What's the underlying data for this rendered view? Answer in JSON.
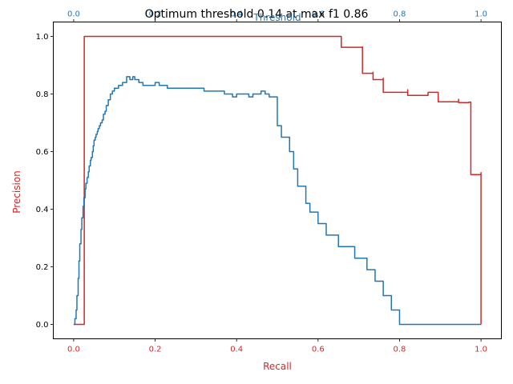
{
  "chart_data": {
    "type": "line",
    "title": "Optimum threshold 0.14 at max f1 0.86",
    "xlabel": "Recall",
    "ylabel": "Precision",
    "top_xlabel": "Threshold",
    "xlim": [
      -0.05,
      1.05
    ],
    "ylim": [
      -0.05,
      1.05
    ],
    "x_ticks": [
      "0.0",
      "0.2",
      "0.4",
      "0.6",
      "0.8",
      "1.0"
    ],
    "y_ticks": [
      "0.0",
      "0.2",
      "0.4",
      "0.6",
      "0.8",
      "1.0"
    ],
    "top_x_ticks": [
      "0.0",
      "0.2",
      "0.4",
      "0.6",
      "0.8",
      "1.0"
    ],
    "colors": {
      "precision_recall": "#d62728",
      "f1_threshold": "#1f77b4",
      "axis": "#000000"
    },
    "series": [
      {
        "axis": "bottom",
        "color": "#d62728",
        "drawstyle": "steps-post",
        "x": [
          0.0,
          0.026,
          0.657,
          0.657,
          0.709,
          0.709,
          0.735,
          0.735,
          0.76,
          0.76,
          0.82,
          0.82,
          0.87,
          0.895,
          0.895,
          0.945,
          0.945,
          0.97,
          0.975,
          0.975,
          1.0,
          1.0
        ],
        "y": [
          0.0,
          1.0,
          1.0,
          0.962,
          0.964,
          0.872,
          0.876,
          0.85,
          0.855,
          0.806,
          0.815,
          0.795,
          0.806,
          0.79,
          0.773,
          0.782,
          0.77,
          0.772,
          0.768,
          0.52,
          0.527,
          0.0
        ]
      },
      {
        "axis": "top",
        "color": "#1f77b4",
        "drawstyle": "steps-post",
        "x": [
          0.0,
          0.003,
          0.006,
          0.008,
          0.011,
          0.013,
          0.015,
          0.018,
          0.02,
          0.023,
          0.025,
          0.028,
          0.03,
          0.033,
          0.036,
          0.038,
          0.041,
          0.043,
          0.046,
          0.048,
          0.05,
          0.053,
          0.055,
          0.058,
          0.06,
          0.063,
          0.066,
          0.07,
          0.073,
          0.077,
          0.08,
          0.085,
          0.09,
          0.095,
          0.1,
          0.105,
          0.11,
          0.12,
          0.13,
          0.138,
          0.145,
          0.15,
          0.16,
          0.17,
          0.2,
          0.21,
          0.23,
          0.32,
          0.35,
          0.37,
          0.38,
          0.39,
          0.4,
          0.42,
          0.43,
          0.44,
          0.45,
          0.46,
          0.47,
          0.48,
          0.5,
          0.51,
          0.53,
          0.54,
          0.55,
          0.57,
          0.58,
          0.6,
          0.62,
          0.65,
          0.69,
          0.72,
          0.74,
          0.76,
          0.78,
          0.8,
          0.82,
          1.0
        ],
        "y": [
          0.0,
          0.02,
          0.05,
          0.1,
          0.16,
          0.22,
          0.28,
          0.33,
          0.37,
          0.41,
          0.44,
          0.47,
          0.49,
          0.51,
          0.53,
          0.55,
          0.57,
          0.58,
          0.6,
          0.62,
          0.64,
          0.65,
          0.66,
          0.67,
          0.68,
          0.69,
          0.7,
          0.71,
          0.73,
          0.74,
          0.76,
          0.78,
          0.8,
          0.81,
          0.82,
          0.82,
          0.83,
          0.84,
          0.86,
          0.85,
          0.86,
          0.85,
          0.84,
          0.83,
          0.84,
          0.83,
          0.82,
          0.81,
          0.81,
          0.8,
          0.8,
          0.79,
          0.8,
          0.8,
          0.79,
          0.8,
          0.8,
          0.81,
          0.8,
          0.79,
          0.69,
          0.65,
          0.6,
          0.54,
          0.48,
          0.42,
          0.39,
          0.35,
          0.31,
          0.27,
          0.23,
          0.19,
          0.15,
          0.1,
          0.05,
          0.0,
          0.0,
          0.0
        ]
      }
    ]
  }
}
